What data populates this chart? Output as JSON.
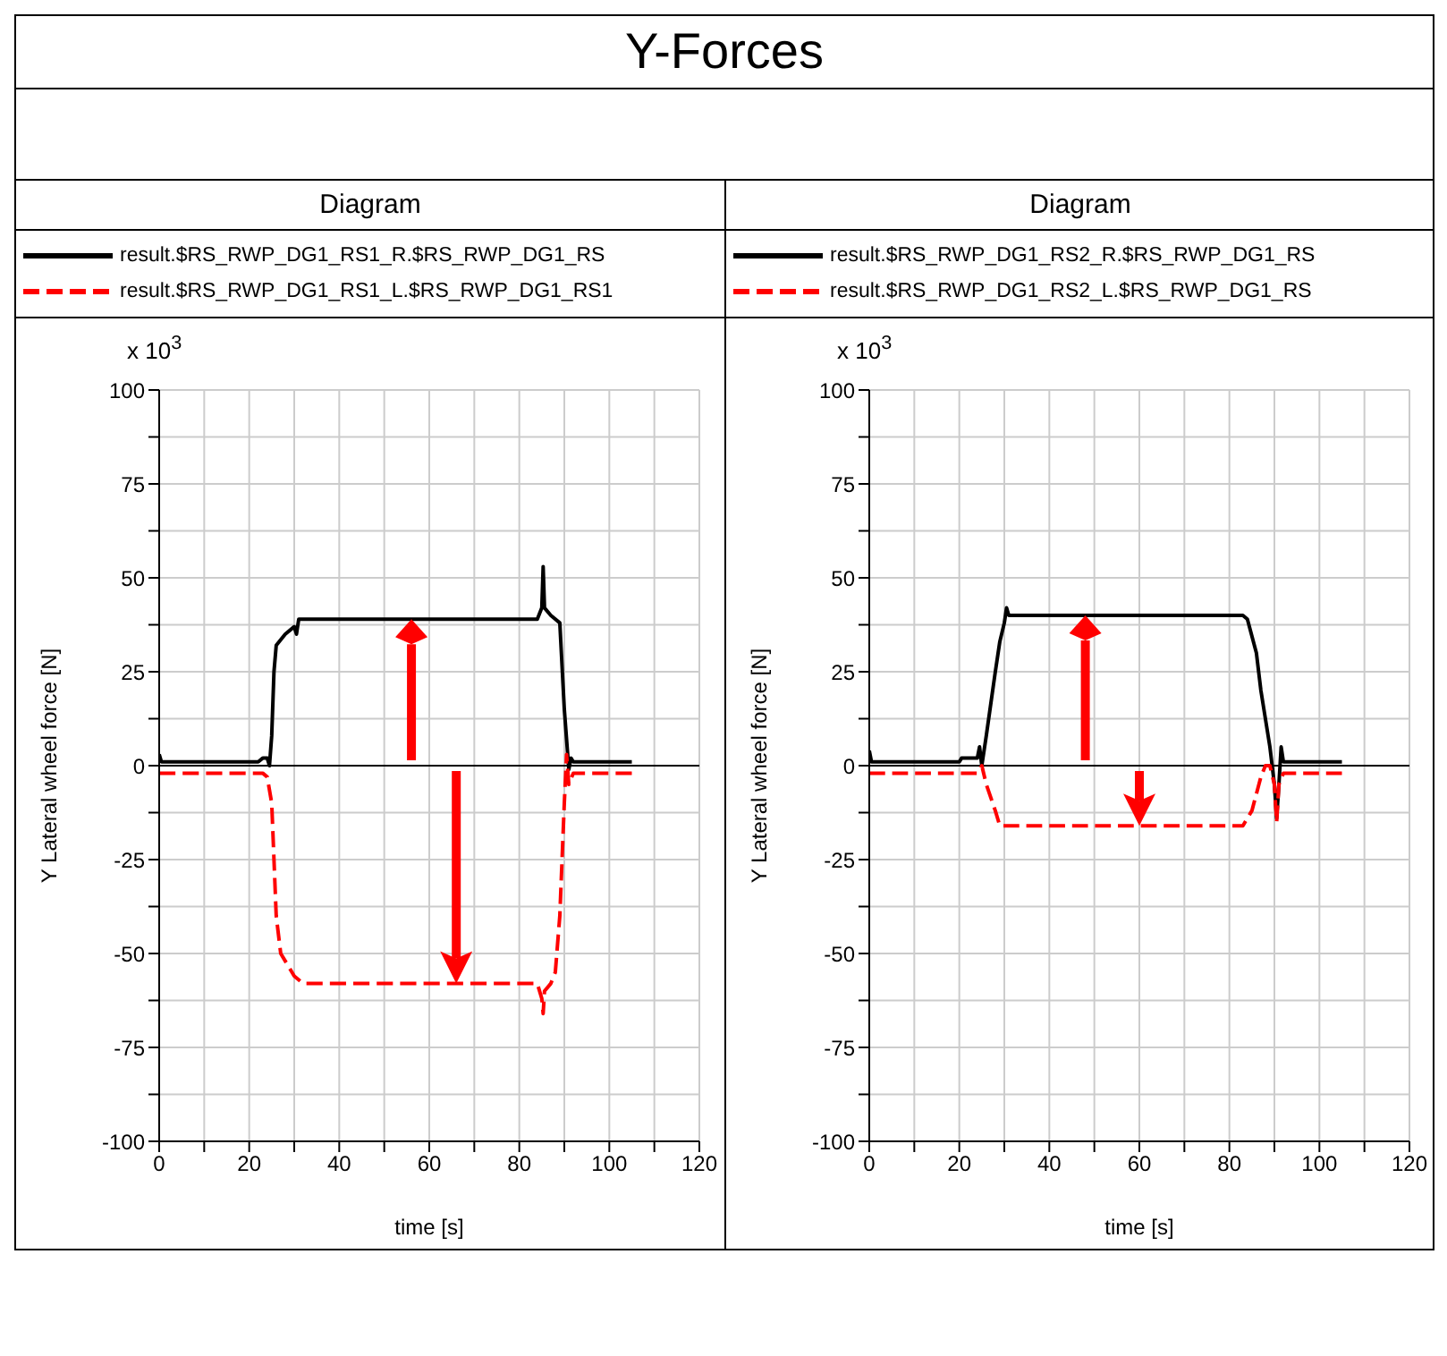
{
  "chart_data": [
    {
      "type": "line",
      "title": "Y-Forces",
      "subtitle": "Diagram",
      "xlabel": "time [s]",
      "ylabel": "Y Lateral wheel force [N]",
      "annotations": [
        "x 10$^{3}$"
      ],
      "xlim": [
        0,
        120
      ],
      "xticks": [
        0,
        {
          "value": 10,
          "label": null
        },
        20,
        {
          "value": 30,
          "label": null
        },
        40,
        {
          "value": 50,
          "label": null
        },
        60,
        {
          "value": 70,
          "label": null
        },
        80,
        {
          "value": 90,
          "label": null
        },
        100,
        {
          "value": 110,
          "label": null
        },
        120
      ],
      "ylim": [
        -100,
        100
      ],
      "yticks": [
        -100,
        {
          "value": -87.5,
          "label": null
        },
        -75,
        {
          "value": -62.5,
          "label": null
        },
        -50,
        {
          "value": -37.5,
          "label": null
        },
        -25,
        {
          "value": -12.5,
          "label": null
        },
        0,
        {
          "value": 12.5,
          "label": null
        },
        25,
        {
          "value": 37.5,
          "label": null
        },
        50,
        {
          "value": 62.5,
          "label": null
        },
        75,
        {
          "value": 87.5,
          "label": null
        },
        100
      ],
      "grid": true,
      "legend": "top",
      "ref_lines": [
        {
          "axis": "y",
          "value": 0,
          "color": "#000000"
        }
      ],
      "series": [
        {
          "name": "result.$RS_RWP_DG1_RS1_R.$RS_RWP_DG1_RS",
          "color": "#000000",
          "line_style": "solid",
          "x": [
            0,
            0.5,
            22,
            23,
            24,
            24.5,
            25,
            25.5,
            26,
            28,
            30,
            30.5,
            31,
            60,
            84,
            85,
            85.3,
            85.6,
            87,
            89,
            90,
            91,
            91.5,
            92,
            105
          ],
          "values": [
            3,
            1,
            1,
            2,
            2,
            0,
            8,
            25,
            32,
            35,
            37,
            35,
            39,
            39,
            39,
            42,
            53,
            42,
            40,
            38,
            15,
            -1,
            2,
            1,
            1
          ]
        },
        {
          "name": "result.$RS_RWP_DG1_RS1_L.$RS_RWP_DG1_RS1",
          "color": "#ff0000",
          "line_style": "dashed",
          "x": [
            0,
            23,
            24,
            25,
            26,
            27,
            30,
            32,
            50,
            84,
            85,
            85.3,
            85.6,
            87,
            88,
            89,
            90,
            90.5,
            91,
            92,
            105
          ],
          "values": [
            -2,
            -2,
            -3,
            -10,
            -40,
            -50,
            -56,
            -58,
            -58,
            -58,
            -62,
            -66,
            -60,
            -58,
            -55,
            -40,
            -10,
            3,
            -5,
            -2,
            -2
          ]
        }
      ]
    },
    {
      "type": "line",
      "subtitle": "Diagram",
      "xlabel": "time [s]",
      "ylabel": "Y Lateral wheel force [N]",
      "annotations": [
        "x 10$^{3}$"
      ],
      "xlim": [
        0,
        120
      ],
      "xticks": [
        0,
        {
          "value": 10,
          "label": null
        },
        20,
        {
          "value": 30,
          "label": null
        },
        40,
        {
          "value": 50,
          "label": null
        },
        60,
        {
          "value": 70,
          "label": null
        },
        80,
        {
          "value": 90,
          "label": null
        },
        100,
        {
          "value": 110,
          "label": null
        },
        120
      ],
      "ylim": [
        -100,
        100
      ],
      "yticks": [
        -100,
        {
          "value": -87.5,
          "label": null
        },
        -75,
        {
          "value": -62.5,
          "label": null
        },
        -50,
        {
          "value": -37.5,
          "label": null
        },
        -25,
        {
          "value": -12.5,
          "label": null
        },
        0,
        {
          "value": 12.5,
          "label": null
        },
        25,
        {
          "value": 37.5,
          "label": null
        },
        50,
        {
          "value": 62.5,
          "label": null
        },
        75,
        {
          "value": 87.5,
          "label": null
        },
        100
      ],
      "grid": true,
      "legend": "top",
      "ref_lines": [
        {
          "axis": "y",
          "value": 0,
          "color": "#000000"
        }
      ],
      "series": [
        {
          "name": "result.$RS_RWP_DG1_RS2_R.$RS_RWP_DG1_RS",
          "color": "#000000",
          "line_style": "solid",
          "x": [
            0,
            0.5,
            20,
            20.5,
            24,
            24.5,
            25,
            26,
            28,
            29,
            30,
            30.5,
            31,
            60,
            83,
            84,
            86,
            87,
            89,
            90,
            90.5,
            91,
            91.5,
            92,
            105
          ],
          "values": [
            4,
            1,
            1,
            2,
            2,
            5,
            0,
            8,
            25,
            33,
            38,
            42,
            40,
            40,
            40,
            39,
            30,
            20,
            5,
            -5,
            -14,
            -5,
            5,
            1,
            1
          ]
        },
        {
          "name": "result.$RS_RWP_DG1_RS2_L.$RS_RWP_DG1_RS",
          "color": "#ff0000",
          "line_style": "dashed",
          "x": [
            0,
            24,
            25,
            26,
            28,
            29,
            31,
            60,
            83,
            85,
            87,
            88,
            89,
            90,
            90.5,
            91,
            92,
            105
          ],
          "values": [
            -2,
            -2,
            0,
            -5,
            -12,
            -16,
            -16,
            -16,
            -16,
            -12,
            -3,
            0,
            0,
            -5,
            -15,
            -5,
            -2,
            -2
          ]
        }
      ]
    }
  ]
}
